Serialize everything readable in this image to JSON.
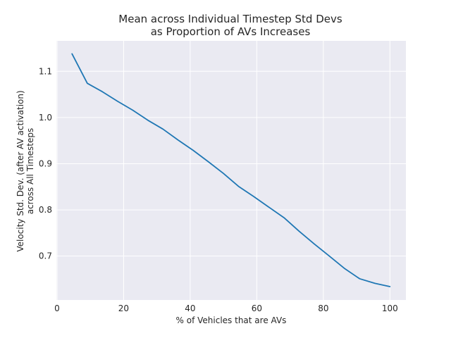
{
  "chart_data": {
    "type": "line",
    "title": [
      "Mean across Individual Timestep Std Devs",
      "as Proportion of AVs Increases"
    ],
    "xlabel": "% of Vehicles that are AVs",
    "ylabel": [
      "Velocity Std. Dev. (after AV activation)",
      "across All Timesteps"
    ],
    "xlim": [
      -0.2,
      104.8
    ],
    "ylim": [
      0.605,
      1.166
    ],
    "xticks": [
      0,
      20,
      40,
      60,
      80,
      100
    ],
    "xtick_labels": [
      "0",
      "20",
      "40",
      "60",
      "80",
      "100"
    ],
    "yticks": [
      0.7,
      0.8,
      0.9,
      1.0,
      1.1
    ],
    "ytick_labels": [
      "0.7",
      "0.8",
      "0.9",
      "1.0",
      "1.1"
    ],
    "grid": true,
    "colors": {
      "background": "#eaeaf2",
      "grid": "#ffffff",
      "line": "#1f77b4"
    },
    "series": [
      {
        "x": [
          4.5,
          9.1,
          13.6,
          18.2,
          22.7,
          27.3,
          31.8,
          36.4,
          40.9,
          45.5,
          50.0,
          54.5,
          59.1,
          63.6,
          68.2,
          72.7,
          77.3,
          81.8,
          86.4,
          90.9,
          95.5,
          100.0
        ],
        "values": [
          1.138,
          1.074,
          1.056,
          1.035,
          1.016,
          0.994,
          0.975,
          0.951,
          0.929,
          0.904,
          0.879,
          0.851,
          0.829,
          0.806,
          0.783,
          0.754,
          0.726,
          0.7,
          0.673,
          0.651,
          0.641,
          0.634
        ]
      }
    ]
  }
}
